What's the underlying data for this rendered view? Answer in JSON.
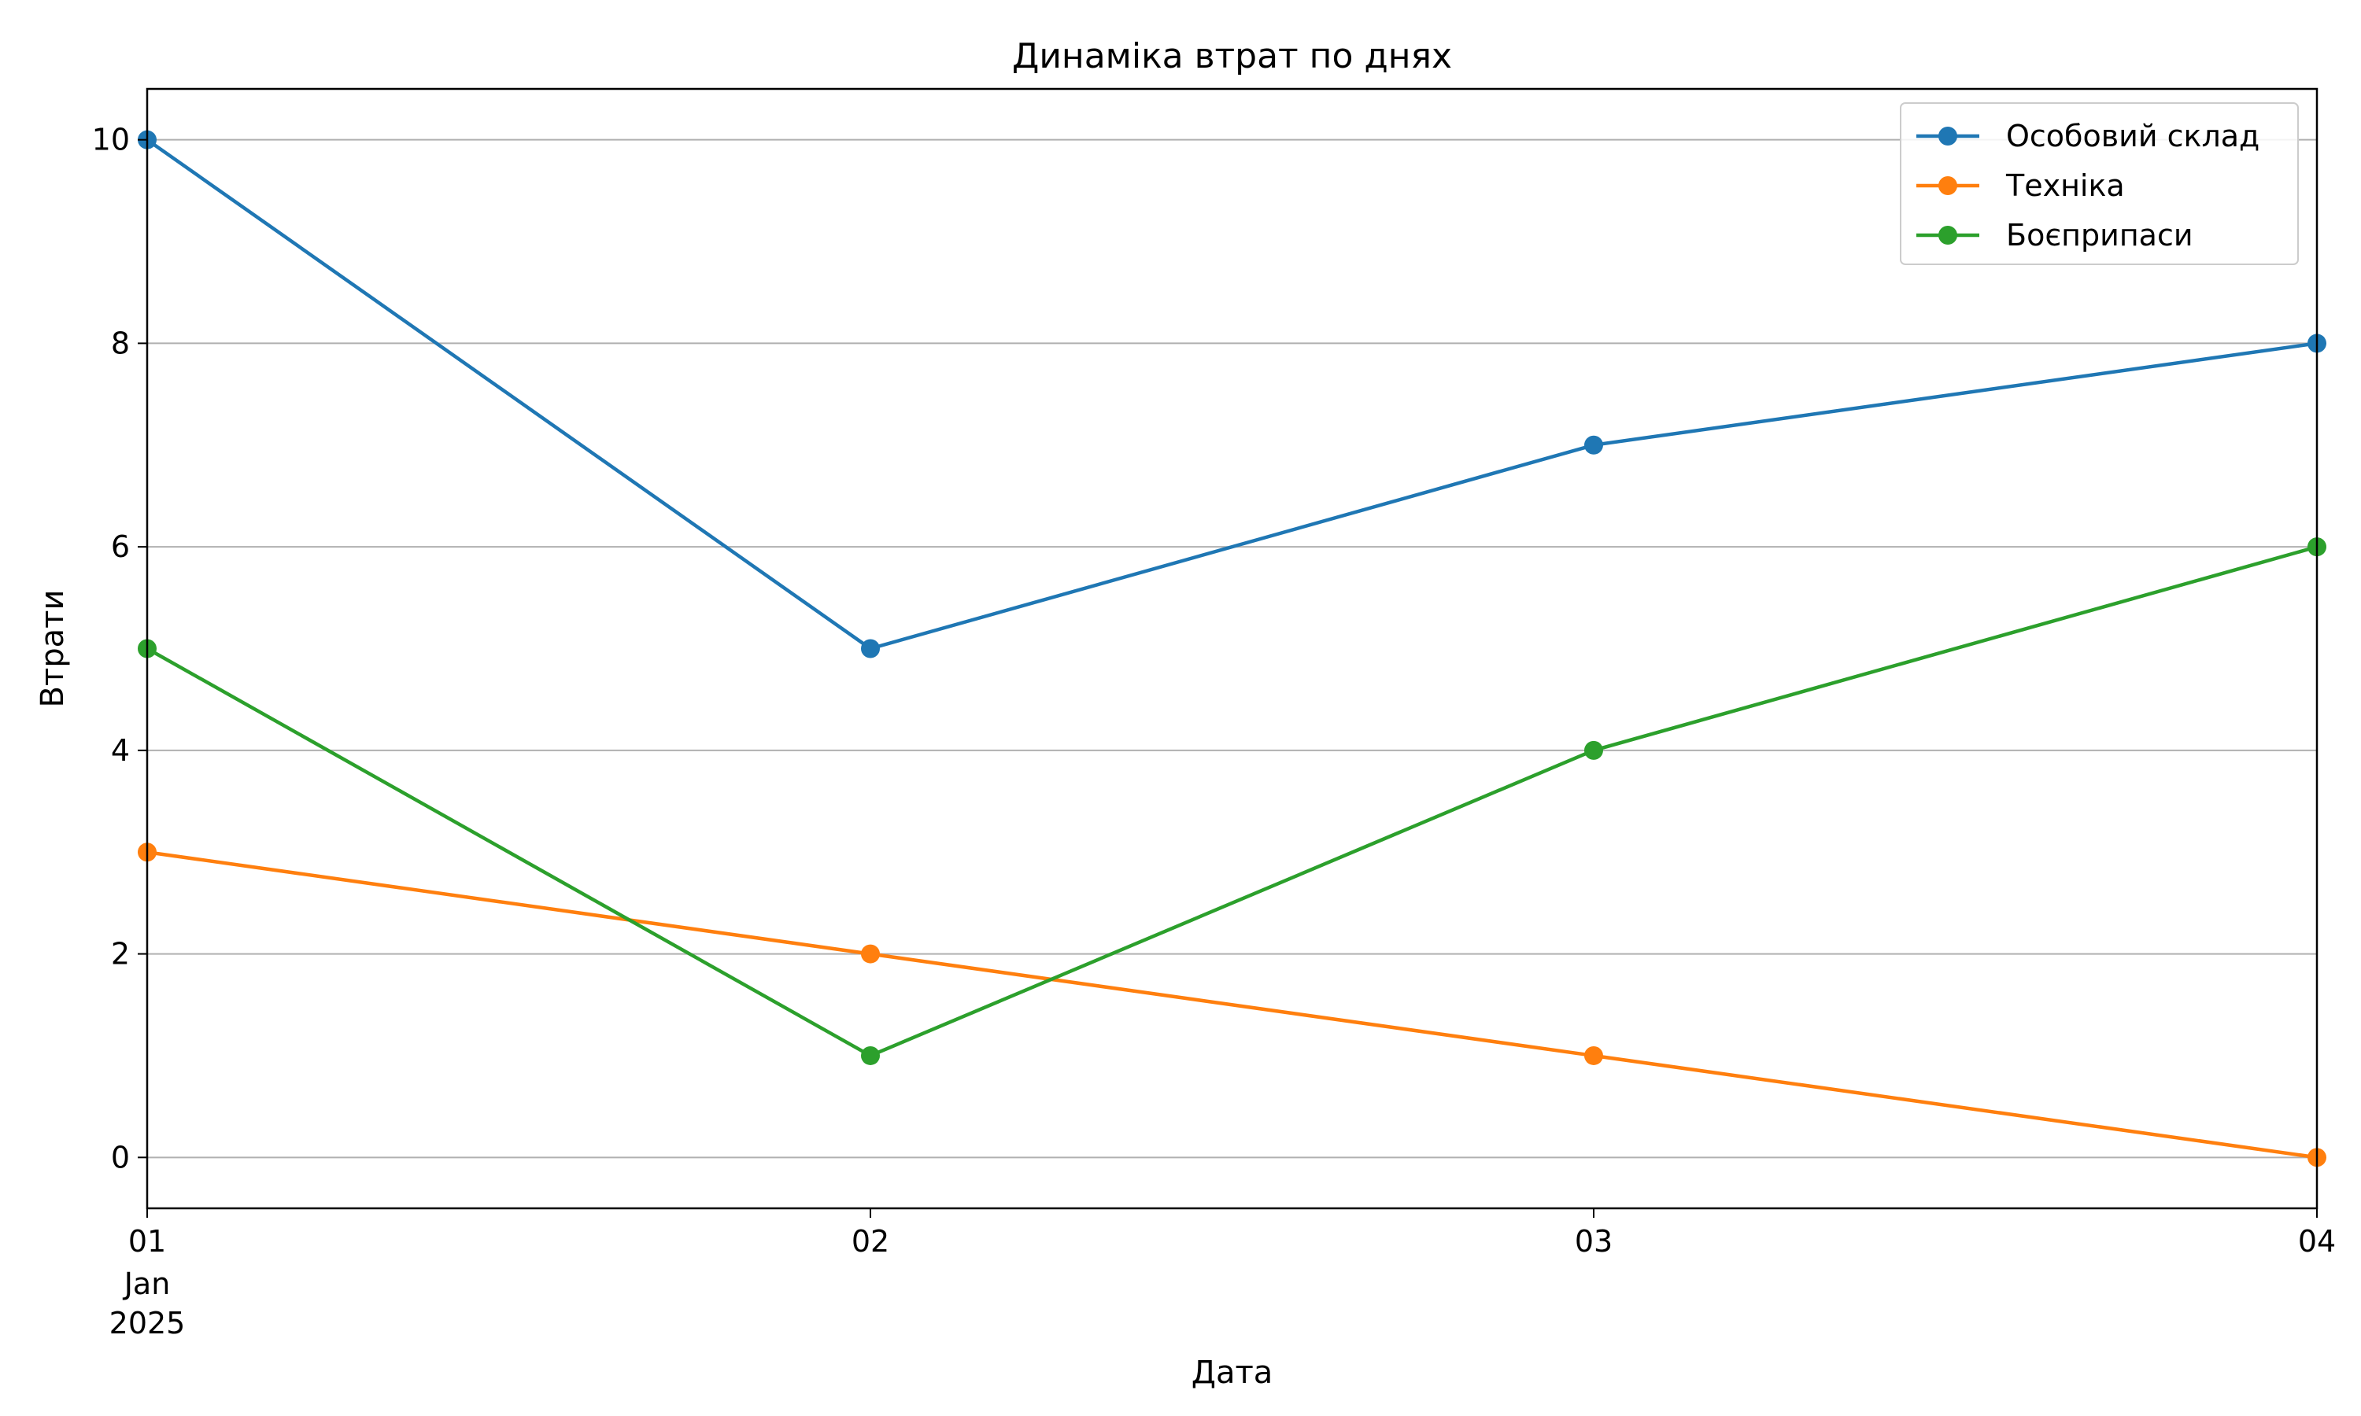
{
  "chart_data": {
    "type": "line",
    "title": "Динаміка втрат по днях",
    "xlabel": "Дата",
    "ylabel": "Втрати",
    "x": [
      "2025-01-01",
      "2025-01-02",
      "2025-01-03",
      "2025-01-04"
    ],
    "x_tick_labels": [
      "01",
      "02",
      "03",
      "04"
    ],
    "x_tick_sublabels": [
      "Jan",
      "2025"
    ],
    "ylim": [
      -0.5,
      10.5
    ],
    "y_ticks": [
      0,
      2,
      4,
      6,
      8,
      10
    ],
    "grid": "horizontal",
    "legend_position": "top-right",
    "markers": "circle",
    "series": [
      {
        "name": "Особовий склад",
        "color": "#1f77b4",
        "values": [
          10,
          5,
          7,
          8
        ]
      },
      {
        "name": "Техніка",
        "color": "#ff7f0e",
        "values": [
          3,
          2,
          1,
          0
        ]
      },
      {
        "name": "Боєприпаси",
        "color": "#2ca02c",
        "values": [
          5,
          1,
          4,
          6
        ]
      }
    ]
  }
}
